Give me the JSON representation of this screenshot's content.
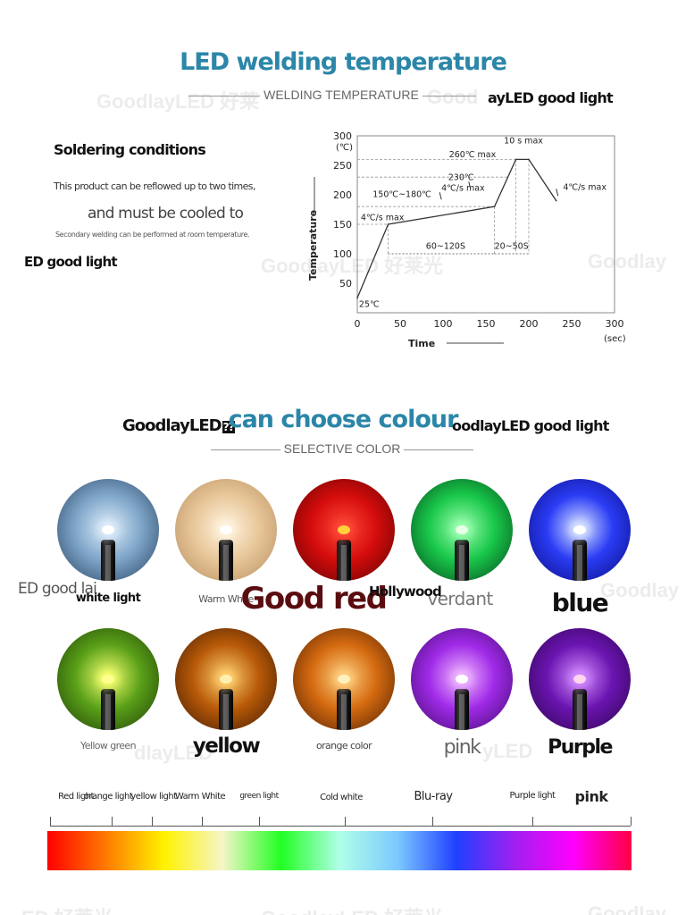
{
  "watermarks": {
    "top_left": "GoodlayLED 好莱",
    "top_right": "Good",
    "mid_chart": "GoodlayLED 好莱光",
    "mid_right": "Goodlay",
    "row1_right": "Goodlay",
    "row2_mid": "dlayLED",
    "row2_right": "yLED",
    "bottom_left": "ED 好莱光",
    "bottom_mid": "GoodlayLED 好莱光",
    "bottom_right": "Goodlay"
  },
  "section1": {
    "title": "LED welding temperature",
    "subtitle": "WELDING TEMPERATURE",
    "side_text": "ayLED good light",
    "cond_title": "Soldering conditions",
    "cond_line1": "This product can be reflowed up to two times,",
    "cond_line2": "and must be cooled to",
    "cond_line3": "Secondary welding can be performed at room temperature.",
    "left_text": "ED good light"
  },
  "chart_data": {
    "type": "line",
    "title": "",
    "xlabel": "Time",
    "ylabel": "Temperature",
    "y_unit": "(℃)",
    "x_unit": "(sec)",
    "xlim": [
      0,
      300
    ],
    "ylim": [
      0,
      300
    ],
    "x_ticks": [
      "0",
      "50",
      "100",
      "150",
      "200",
      "250",
      "300"
    ],
    "y_ticks": [
      "50",
      "100",
      "150",
      "200",
      "250",
      "300"
    ],
    "series": [
      {
        "x": [
          0,
          36,
          160,
          185,
          200,
          232
        ],
        "y": [
          25,
          150,
          180,
          260,
          260,
          190
        ]
      }
    ],
    "annotations": {
      "start": "25℃",
      "ramp_up": "4℃/s max",
      "preheat": "150℃~180℃",
      "preheat_time": "60~120S",
      "ramp2": "4℃/s max",
      "t230": "230℃",
      "peak_time": "20~50S",
      "peak": "260℃ max",
      "peak_hold": "10 s max",
      "cool": "4℃/s max"
    }
  },
  "section2": {
    "title": "can choose colour",
    "subtitle": "SELECTIVE COLOR",
    "left_text": "GoodlayLED",
    "left_boxes": "??",
    "right_text": "oodlayLED good light",
    "row1_left_text": "ED good lai",
    "hollywood": "Hollywood"
  },
  "leds": [
    {
      "label": "white light",
      "glow": "#dfeefb",
      "mid": "#7fa6c9",
      "edge": "#243f5e",
      "chip": "#ffffff"
    },
    {
      "label": "Warm White",
      "glow": "#fff4e0",
      "mid": "#e8c79a",
      "edge": "#b48a5a",
      "chip": "#ffffff"
    },
    {
      "label": "Good red",
      "glow": "#ff4a3a",
      "mid": "#d40c0c",
      "edge": "#5a0202",
      "chip": "#ffd23a"
    },
    {
      "label": "verdant",
      "glow": "#9dffb0",
      "mid": "#19c84a",
      "edge": "#03401a",
      "chip": "#e8ffe8"
    },
    {
      "label": "blue",
      "glow": "#d8e4ff",
      "mid": "#2a3cf5",
      "edge": "#0a0a7a",
      "chip": "#ffffff"
    },
    {
      "label": "Yellow green",
      "glow": "#f4ff70",
      "mid": "#5aa018",
      "edge": "#1c3a06",
      "chip": "#ffff90"
    },
    {
      "label": "yellow",
      "glow": "#ffd070",
      "mid": "#b85a08",
      "edge": "#3a1602",
      "chip": "#fff0b0"
    },
    {
      "label": "orange color",
      "glow": "#ffd080",
      "mid": "#d46a10",
      "edge": "#4a1c02",
      "chip": "#fff2c0"
    },
    {
      "label": "pink",
      "glow": "#f0b8ff",
      "mid": "#a02ae8",
      "edge": "#3c0a66",
      "chip": "#ffffff"
    },
    {
      "label": "Purple",
      "glow": "#d28cff",
      "mid": "#6a14b0",
      "edge": "#2a0448",
      "chip": "#ffd6f0"
    }
  ],
  "spectrum": {
    "labels": [
      "Red light",
      "orange light",
      "yellow light",
      "Warm White",
      "green light",
      "Cold white",
      "Blu-ray",
      "Purple light",
      "pink"
    ],
    "colors": [
      "#ff0000",
      "#ff7a00",
      "#fff200",
      "#f5f5c8",
      "#22ff22",
      "#b0ffe8",
      "#7cc8ff",
      "#2040ff",
      "#a020f0",
      "#ff00ff",
      "#ff0044"
    ]
  }
}
